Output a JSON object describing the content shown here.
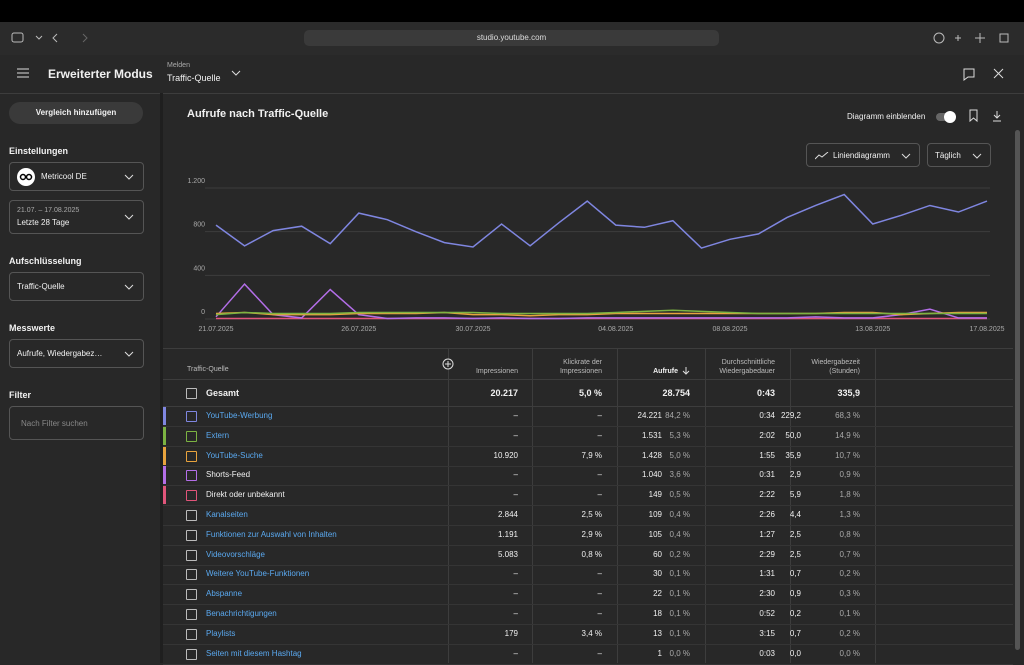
{
  "browser": {
    "url": "studio.youtube.com"
  },
  "header": {
    "title": "Erweiterter Modus",
    "report_label": "Melden",
    "report_value": "Traffic-Quelle"
  },
  "sidebar": {
    "compare_button": "Vergleich hinzufügen",
    "settings_label": "Einstellungen",
    "channel": "Metricool DE",
    "date_range": "21.07. – 17.08.2025",
    "date_preset": "Letzte 28 Tage",
    "breakdown_label": "Aufschlüsselung",
    "breakdown_value": "Traffic-Quelle",
    "metrics_label": "Messwerte",
    "metrics_value": "Aufrufe, Wiedergabez…",
    "filter_label": "Filter",
    "filter_placeholder": "Nach Filter suchen"
  },
  "panel": {
    "title": "Aufrufe nach Traffic-Quelle",
    "toggle_label": "Diagramm einblenden",
    "toggle_on": true,
    "chart_type_menu": "Liniendiagramm",
    "interval_menu": "Täglich"
  },
  "chart_data": {
    "type": "line",
    "categories": [
      "21.07.2025",
      null,
      null,
      null,
      null,
      "26.07.2025",
      null,
      null,
      null,
      "30.07.2025",
      null,
      null,
      null,
      null,
      "04.08.2025",
      null,
      null,
      null,
      "08.08.2025",
      null,
      null,
      null,
      null,
      "13.08.2025",
      null,
      null,
      null,
      "17.08.2025"
    ],
    "ylim": [
      0,
      1200
    ],
    "yticks": [
      0,
      400,
      800,
      {
        "value": 1200,
        "label": "1.200"
      }
    ],
    "grid": true,
    "series": [
      {
        "name": "YouTube-Werbung",
        "color": "#7f86e0",
        "values": [
          860,
          670,
          810,
          850,
          690,
          970,
          910,
          800,
          700,
          660,
          870,
          670,
          880,
          1080,
          860,
          840,
          900,
          650,
          730,
          780,
          930,
          1040,
          1140,
          870,
          950,
          1040,
          980,
          1080
        ]
      },
      {
        "name": "Extern",
        "color": "#7cb342",
        "values": [
          40,
          60,
          50,
          50,
          50,
          60,
          60,
          60,
          60,
          60,
          50,
          50,
          50,
          50,
          60,
          70,
          80,
          70,
          60,
          50,
          50,
          50,
          50,
          50,
          50,
          50,
          50,
          50
        ]
      },
      {
        "name": "YouTube-Suche",
        "color": "#e8a33d",
        "values": [
          50,
          60,
          40,
          40,
          40,
          50,
          50,
          50,
          60,
          40,
          40,
          30,
          40,
          40,
          50,
          50,
          50,
          50,
          50,
          50,
          50,
          50,
          60,
          60,
          40,
          50,
          60,
          60
        ]
      },
      {
        "name": "Shorts-Feed",
        "color": "#b36ee8",
        "values": [
          20,
          320,
          40,
          10,
          270,
          40,
          5,
          10,
          10,
          5,
          10,
          5,
          5,
          10,
          10,
          10,
          10,
          10,
          10,
          10,
          10,
          20,
          10,
          10,
          40,
          90,
          10,
          10
        ]
      },
      {
        "name": "Direkt oder unbekannt",
        "color": "#e0557a",
        "values": [
          5,
          5,
          5,
          5,
          5,
          5,
          5,
          5,
          5,
          5,
          5,
          5,
          5,
          5,
          5,
          5,
          5,
          5,
          5,
          5,
          5,
          5,
          5,
          5,
          5,
          5,
          5,
          5
        ]
      }
    ]
  },
  "table": {
    "headers": [
      "Traffic-Quelle",
      "Impressionen",
      "Klickrate der Impressionen",
      "Aufrufe",
      "Durchschnittliche Wiedergabedauer",
      "Wiedergabezeit (Stunden)"
    ],
    "total": [
      "Gesamt",
      "20.217",
      "5,0 %",
      "28.754",
      "0:43",
      "335,9"
    ],
    "rows": [
      {
        "linked": true,
        "impressions": "–",
        "ctr": "–",
        "views": "24.221",
        "views_share": "84,2 %",
        "avg_duration": "0:34",
        "watch_time": "229,2",
        "watch_share": "68,3 %"
      },
      {
        "linked": true,
        "impressions": "–",
        "ctr": "–",
        "views": "1.531",
        "views_share": "5,3 %",
        "avg_duration": "2:02",
        "watch_time": "50,0",
        "watch_share": "14,9 %"
      },
      {
        "linked": true,
        "impressions": "10.920",
        "ctr": "7,9 %",
        "views": "1.428",
        "views_share": "5,0 %",
        "avg_duration": "1:55",
        "watch_time": "35,9",
        "watch_share": "10,7 %"
      },
      {
        "linked": false,
        "impressions": "–",
        "ctr": "–",
        "views": "1.040",
        "views_share": "3,6 %",
        "avg_duration": "0:31",
        "watch_time": "2,9",
        "watch_share": "0,9 %"
      },
      {
        "linked": false,
        "impressions": "–",
        "ctr": "–",
        "views": "149",
        "views_share": "0,5 %",
        "avg_duration": "2:22",
        "watch_time": "5,9",
        "watch_share": "1,8 %"
      },
      {
        "name": "Kanalseiten",
        "linked": true,
        "impressions": "2.844",
        "ctr": "2,5 %",
        "views": "109",
        "views_share": "0,4 %",
        "avg_duration": "2:26",
        "watch_time": "4,4",
        "watch_share": "1,3 %"
      },
      {
        "name": "Funktionen zur Auswahl von Inhalten",
        "linked": true,
        "impressions": "1.191",
        "ctr": "2,9 %",
        "views": "105",
        "views_share": "0,4 %",
        "avg_duration": "1:27",
        "watch_time": "2,5",
        "watch_share": "0,8 %"
      },
      {
        "name": "Videovorschläge",
        "linked": true,
        "impressions": "5.083",
        "ctr": "0,8 %",
        "views": "60",
        "views_share": "0,2 %",
        "avg_duration": "2:29",
        "watch_time": "2,5",
        "watch_share": "0,7 %"
      },
      {
        "name": "Weitere YouTube-Funktionen",
        "linked": true,
        "impressions": "–",
        "ctr": "–",
        "views": "30",
        "views_share": "0,1 %",
        "avg_duration": "1:31",
        "watch_time": "0,7",
        "watch_share": "0,2 %"
      },
      {
        "name": "Abspanne",
        "linked": true,
        "impressions": "–",
        "ctr": "–",
        "views": "22",
        "views_share": "0,1 %",
        "avg_duration": "2:30",
        "watch_time": "0,9",
        "watch_share": "0,3 %"
      },
      {
        "name": "Benachrichtigungen",
        "linked": true,
        "impressions": "–",
        "ctr": "–",
        "views": "18",
        "views_share": "0,1 %",
        "avg_duration": "0:52",
        "watch_time": "0,2",
        "watch_share": "0,1 %"
      },
      {
        "name": "Playlists",
        "linked": true,
        "impressions": "179",
        "ctr": "3,4 %",
        "views": "13",
        "views_share": "0,1 %",
        "avg_duration": "3:15",
        "watch_time": "0,7",
        "watch_share": "0,2 %"
      },
      {
        "name": "Seiten mit diesem Hashtag",
        "linked": true,
        "impressions": "–",
        "ctr": "–",
        "views": "1",
        "views_share": "0,0 %",
        "avg_duration": "0:03",
        "watch_time": "0,0",
        "watch_share": "0,0 %"
      }
    ]
  }
}
